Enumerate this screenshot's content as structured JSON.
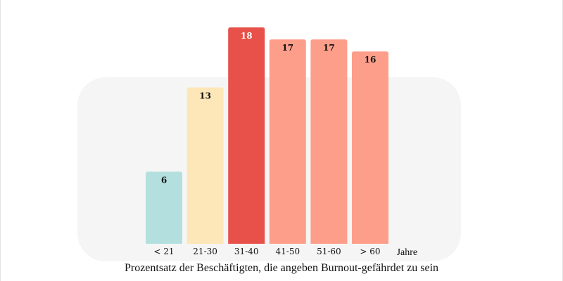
{
  "chart_data": {
    "type": "bar",
    "categories": [
      "< 21",
      "21-30",
      "31-40",
      "41-50",
      "51-60",
      "> 60"
    ],
    "values": [
      6,
      13,
      18,
      17,
      17,
      16
    ],
    "colors": [
      "#b3e0de",
      "#fde6b8",
      "#e8514a",
      "#fd9e8b",
      "#fd9e8b",
      "#fd9e8b"
    ],
    "label_colors": [
      "#111111",
      "#111111",
      "#ffffff",
      "#111111",
      "#111111",
      "#111111"
    ],
    "xlabel": "Jahre",
    "title": "Prozentsatz der Beschäftigten, die angeben Burnout-gefährdet zu sein",
    "ylim": [
      0,
      18
    ],
    "grid": false,
    "data_labels": true
  }
}
